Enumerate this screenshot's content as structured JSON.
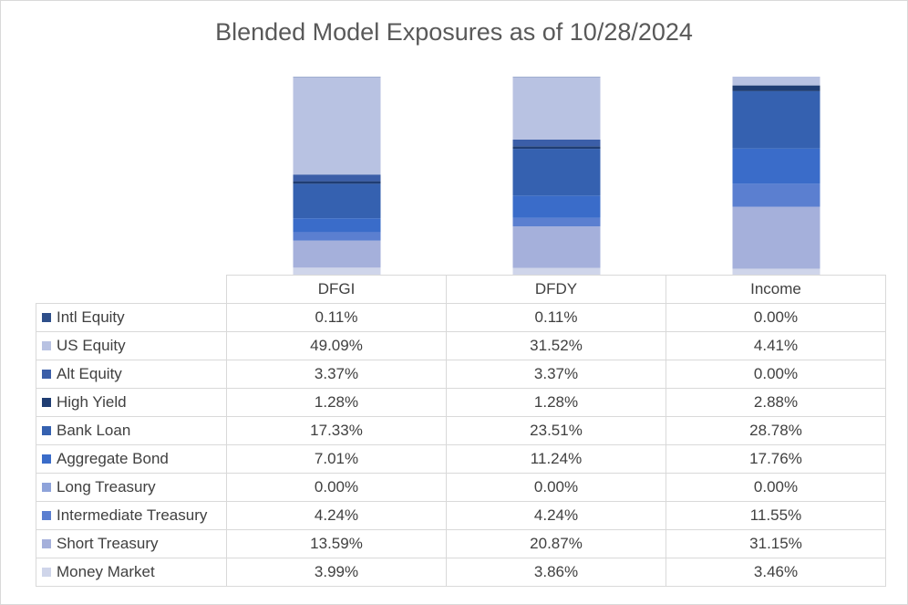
{
  "chart_data": {
    "type": "bar",
    "stacked": true,
    "normalized_100_percent": true,
    "title": "Blended Model Exposures as of 10/28/2024",
    "categories": [
      "DFGI",
      "DFDY",
      "Income"
    ],
    "xlabel": "",
    "ylabel": "",
    "ylim": [
      0,
      100
    ],
    "grid": false,
    "legend": "data table",
    "series": [
      {
        "name": "Money Market",
        "color": "#cfd5ea",
        "values": [
          3.99,
          3.86,
          3.46
        ]
      },
      {
        "name": "Short Treasury",
        "color": "#a5b0db",
        "values": [
          13.59,
          20.87,
          31.15
        ]
      },
      {
        "name": "Intermediate Treasury",
        "color": "#5b7fd0",
        "values": [
          4.24,
          4.24,
          11.55
        ]
      },
      {
        "name": "Long Treasury",
        "color": "#8ea3da",
        "values": [
          0.0,
          0.0,
          0.0
        ]
      },
      {
        "name": "Aggregate Bond",
        "color": "#3a6cc9",
        "values": [
          7.01,
          11.24,
          17.76
        ]
      },
      {
        "name": "Bank Loan",
        "color": "#3561b0",
        "values": [
          17.33,
          23.51,
          28.78
        ]
      },
      {
        "name": "High Yield",
        "color": "#1f3d73",
        "values": [
          1.28,
          1.28,
          2.88
        ]
      },
      {
        "name": "Alt Equity",
        "color": "#3b5ea8",
        "values": [
          3.37,
          3.37,
          0.0
        ]
      },
      {
        "name": "US Equity",
        "color": "#b8c2e2",
        "values": [
          49.09,
          31.52,
          4.41
        ]
      },
      {
        "name": "Intl Equity",
        "color": "#2e4f8a",
        "values": [
          0.11,
          0.11,
          0.0
        ]
      }
    ]
  },
  "table": {
    "columns": [
      "DFGI",
      "DFDY",
      "Income"
    ],
    "rows": [
      {
        "label": "Intl Equity",
        "color": "#2e4f8a",
        "values": [
          "0.11%",
          "0.11%",
          "0.00%"
        ]
      },
      {
        "label": "US Equity",
        "color": "#b8c2e2",
        "values": [
          "49.09%",
          "31.52%",
          "4.41%"
        ]
      },
      {
        "label": "Alt Equity",
        "color": "#3b5ea8",
        "values": [
          "3.37%",
          "3.37%",
          "0.00%"
        ]
      },
      {
        "label": "High Yield",
        "color": "#1f3d73",
        "values": [
          "1.28%",
          "1.28%",
          "2.88%"
        ]
      },
      {
        "label": "Bank Loan",
        "color": "#3561b0",
        "values": [
          "17.33%",
          "23.51%",
          "28.78%"
        ]
      },
      {
        "label": "Aggregate Bond",
        "color": "#3a6cc9",
        "values": [
          "7.01%",
          "11.24%",
          "17.76%"
        ]
      },
      {
        "label": "Long Treasury",
        "color": "#8ea3da",
        "values": [
          "0.00%",
          "0.00%",
          "0.00%"
        ]
      },
      {
        "label": "Intermediate Treasury",
        "color": "#5b7fd0",
        "values": [
          "4.24%",
          "4.24%",
          "11.55%"
        ]
      },
      {
        "label": "Short Treasury",
        "color": "#a5b0db",
        "values": [
          "13.59%",
          "20.87%",
          "31.15%"
        ]
      },
      {
        "label": "Money Market",
        "color": "#cfd5ea",
        "values": [
          "3.99%",
          "3.86%",
          "3.46%"
        ]
      }
    ]
  }
}
